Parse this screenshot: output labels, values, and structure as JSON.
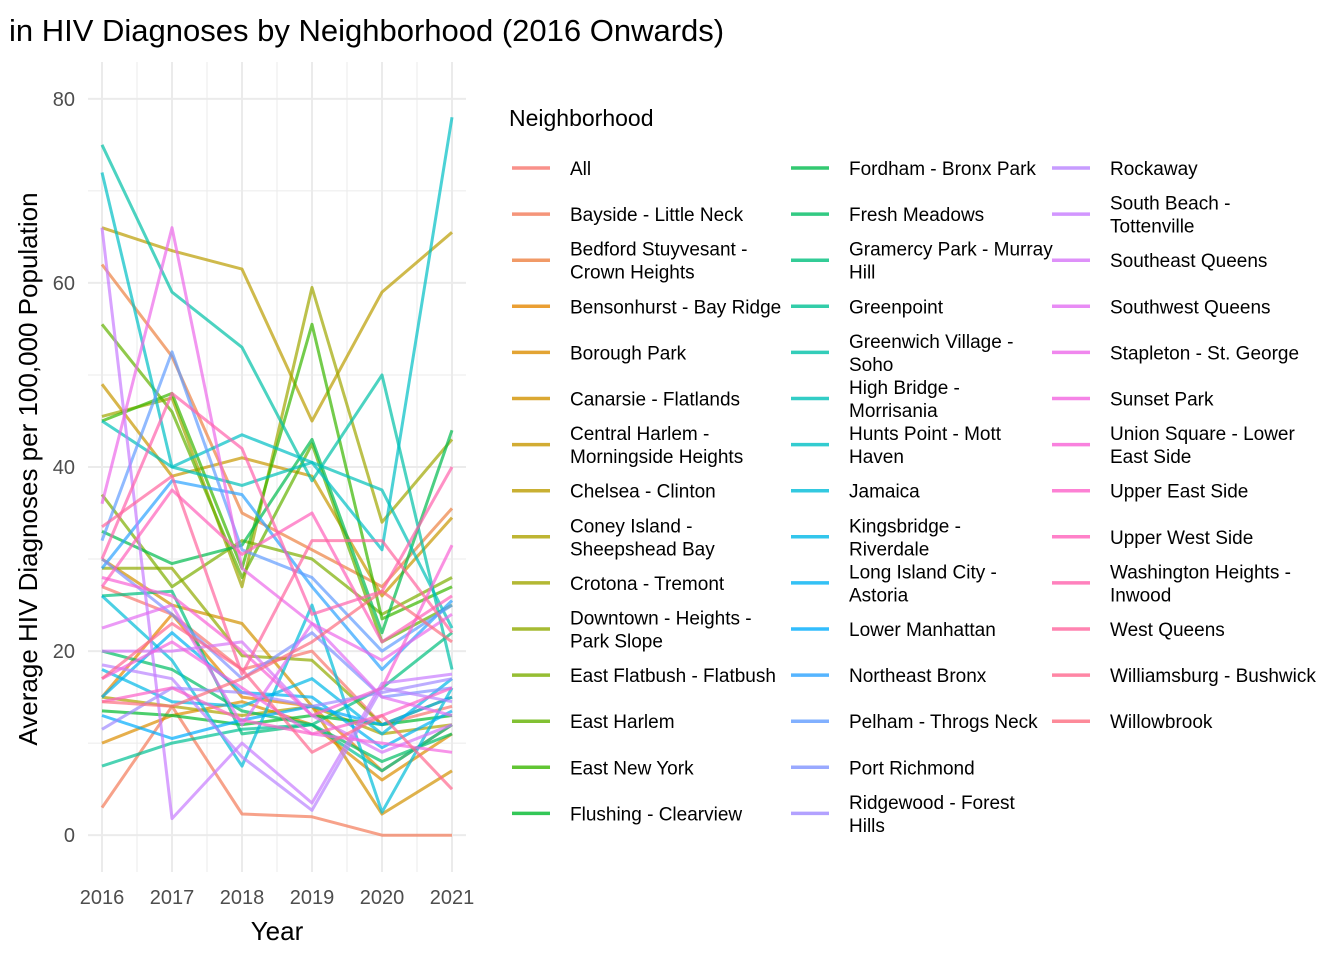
{
  "chart_data": {
    "type": "line",
    "title": "in HIV Diagnoses by Neighborhood (2016 Onwards)",
    "xlabel": "Year",
    "ylabel": "Average HIV Diagnoses per 100,000 Population",
    "x": [
      2016,
      2017,
      2018,
      2019,
      2020,
      2021
    ],
    "xlim": [
      2015.8,
      2021.2
    ],
    "ylim": [
      -4,
      84
    ],
    "yticks": [
      0,
      20,
      40,
      60,
      80
    ],
    "grid": true,
    "legend": {
      "title": "Neighborhood",
      "placement": "right",
      "columns": 3
    },
    "series": [
      {
        "name": "All",
        "color": "#F8766D",
        "values": [
          27,
          24,
          18,
          20,
          12,
          14
        ]
      },
      {
        "name": "Bayside - Little Neck",
        "color": "#F37B59",
        "values": [
          3,
          14,
          2.3,
          2,
          0,
          0
        ]
      },
      {
        "name": "Bedford Stuyvesant - Crown Heights",
        "color": "#ED8141",
        "values": [
          62,
          52,
          35,
          31,
          27,
          35.5
        ]
      },
      {
        "name": "Bensonhurst - Bay Ridge",
        "color": "#E58700",
        "values": [
          15,
          24,
          15,
          14,
          7,
          12
        ]
      },
      {
        "name": "Borough Park",
        "color": "#DC8D00",
        "values": [
          10,
          13,
          14.5,
          12,
          6,
          11
        ]
      },
      {
        "name": "Canarsie - Flatlands",
        "color": "#D29200",
        "values": [
          30,
          25,
          23,
          14,
          2.3,
          7
        ]
      },
      {
        "name": "Central Harlem - Morningside Heights",
        "color": "#C79700",
        "values": [
          49,
          39,
          41,
          39,
          26,
          34.5
        ]
      },
      {
        "name": "Chelsea - Clinton",
        "color": "#BB9C00",
        "values": [
          66,
          63.5,
          61.5,
          45,
          59,
          65.5
        ]
      },
      {
        "name": "Coney Island - Sheepshead Bay",
        "color": "#AEA200",
        "values": [
          15,
          14,
          13,
          14,
          11,
          12
        ]
      },
      {
        "name": "Crotona - Tremont",
        "color": "#A0A600",
        "values": [
          45.5,
          47.5,
          27,
          59.5,
          34,
          43
        ]
      },
      {
        "name": "Downtown - Heights - Park Slope",
        "color": "#90AA00",
        "values": [
          29,
          29,
          19.5,
          19,
          12,
          15
        ]
      },
      {
        "name": "East Flatbush - Flatbush",
        "color": "#7CAE00",
        "values": [
          37,
          27,
          32,
          30,
          24,
          28
        ]
      },
      {
        "name": "East Harlem",
        "color": "#63B200",
        "values": [
          55.5,
          46,
          28,
          42.5,
          21,
          25
        ]
      },
      {
        "name": "East New York",
        "color": "#39B600",
        "values": [
          45,
          48,
          29,
          55.5,
          23.5,
          27
        ]
      },
      {
        "name": "Flushing - Clearview",
        "color": "#00B92D",
        "values": [
          13.5,
          13,
          12,
          13,
          12,
          13
        ]
      },
      {
        "name": "Fordham - Bronx Park",
        "color": "#00BB4E",
        "values": [
          33,
          29.5,
          31.5,
          43,
          22,
          44
        ]
      },
      {
        "name": "Fresh Meadows",
        "color": "#00BD64",
        "values": [
          20,
          18,
          13.5,
          12,
          8,
          11
        ]
      },
      {
        "name": "Gramercy Park - Murray Hill",
        "color": "#00BF7D",
        "values": [
          26,
          26.5,
          11,
          12,
          16,
          22
        ]
      },
      {
        "name": "Greenpoint",
        "color": "#00C094",
        "values": [
          7.5,
          10,
          11.5,
          12,
          7,
          12
        ]
      },
      {
        "name": "Greenwich Village - Soho",
        "color": "#00C1A7",
        "values": [
          75,
          59,
          53,
          38.5,
          50,
          18
        ]
      },
      {
        "name": "High Bridge - Morrisania",
        "color": "#00C0B8",
        "values": [
          45,
          40,
          38,
          40.5,
          37.5,
          22.5
        ]
      },
      {
        "name": "Hunts Point - Mott Haven",
        "color": "#00BFC4",
        "values": [
          72,
          40,
          43.5,
          40.5,
          31,
          78
        ]
      },
      {
        "name": "Jamaica",
        "color": "#00BCD8",
        "values": [
          26,
          19,
          7.5,
          25,
          2.5,
          16
        ]
      },
      {
        "name": "Kingsbridge - Riverdale",
        "color": "#00B8E7",
        "values": [
          18,
          14.5,
          14,
          17,
          11,
          17
        ]
      },
      {
        "name": "Long Island City - Astoria",
        "color": "#00B2F2",
        "values": [
          15,
          22,
          15.5,
          15,
          9.5,
          13.5
        ]
      },
      {
        "name": "Lower Manhattan",
        "color": "#00ACFC",
        "values": [
          13,
          10.5,
          12.5,
          14,
          12,
          15
        ]
      },
      {
        "name": "Northeast Bronx",
        "color": "#2CA3FF",
        "values": [
          29,
          38.5,
          37,
          27,
          18,
          25.5
        ]
      },
      {
        "name": "Pelham - Throgs Neck",
        "color": "#619CFF",
        "values": [
          32,
          52.5,
          31,
          28,
          20,
          25
        ]
      },
      {
        "name": "Port Richmond",
        "color": "#8093FF",
        "values": [
          30,
          24,
          17,
          22,
          15,
          16
        ]
      },
      {
        "name": "Ridgewood - Forest Hills",
        "color": "#9F8AFF",
        "values": [
          11.5,
          16,
          15.5,
          14,
          15.5,
          17
        ]
      },
      {
        "name": "Rockaway",
        "color": "#B983FF",
        "values": [
          18.5,
          17,
          8.5,
          2.7,
          16,
          14.5
        ]
      },
      {
        "name": "South Beach - Tottenville",
        "color": "#C77CFF",
        "values": [
          66,
          1.8,
          10,
          3.5,
          16.5,
          17.5
        ]
      },
      {
        "name": "Southeast Queens",
        "color": "#D676F8",
        "values": [
          20,
          20,
          21,
          13,
          9,
          12
        ]
      },
      {
        "name": "Southwest Queens",
        "color": "#E26FF2",
        "values": [
          22.5,
          25,
          12,
          23,
          15,
          13
        ]
      },
      {
        "name": "Stapleton - St. George",
        "color": "#EC69EA",
        "values": [
          36,
          66,
          29,
          23,
          19,
          24
        ]
      },
      {
        "name": "Sunset Park",
        "color": "#F365E0",
        "values": [
          17,
          21,
          16,
          11,
          10,
          9
        ]
      },
      {
        "name": "Union Square - Lower East Side",
        "color": "#F862D6",
        "values": [
          28,
          26,
          20,
          13,
          16,
          31.5
        ]
      },
      {
        "name": "Upper East Side",
        "color": "#FC61C9",
        "values": [
          14.5,
          16,
          12.5,
          11,
          13,
          16
        ]
      },
      {
        "name": "Upper West Side",
        "color": "#FF61BB",
        "values": [
          27,
          37.5,
          30.5,
          35,
          21,
          26
        ]
      },
      {
        "name": "Washington Heights - Inwood",
        "color": "#FF62AD",
        "values": [
          30,
          48,
          42,
          24,
          26.5,
          40
        ]
      },
      {
        "name": "West Queens",
        "color": "#FF659E",
        "values": [
          33.5,
          39,
          17.5,
          32,
          32,
          22
        ]
      },
      {
        "name": "Williamsburg - Bushwick",
        "color": "#FF688F",
        "values": [
          17,
          23,
          18,
          9,
          13,
          5
        ]
      },
      {
        "name": "Willowbrook",
        "color": "#FC6D80",
        "values": [
          14.5,
          14,
          17,
          21,
          26.5,
          21
        ]
      }
    ]
  }
}
